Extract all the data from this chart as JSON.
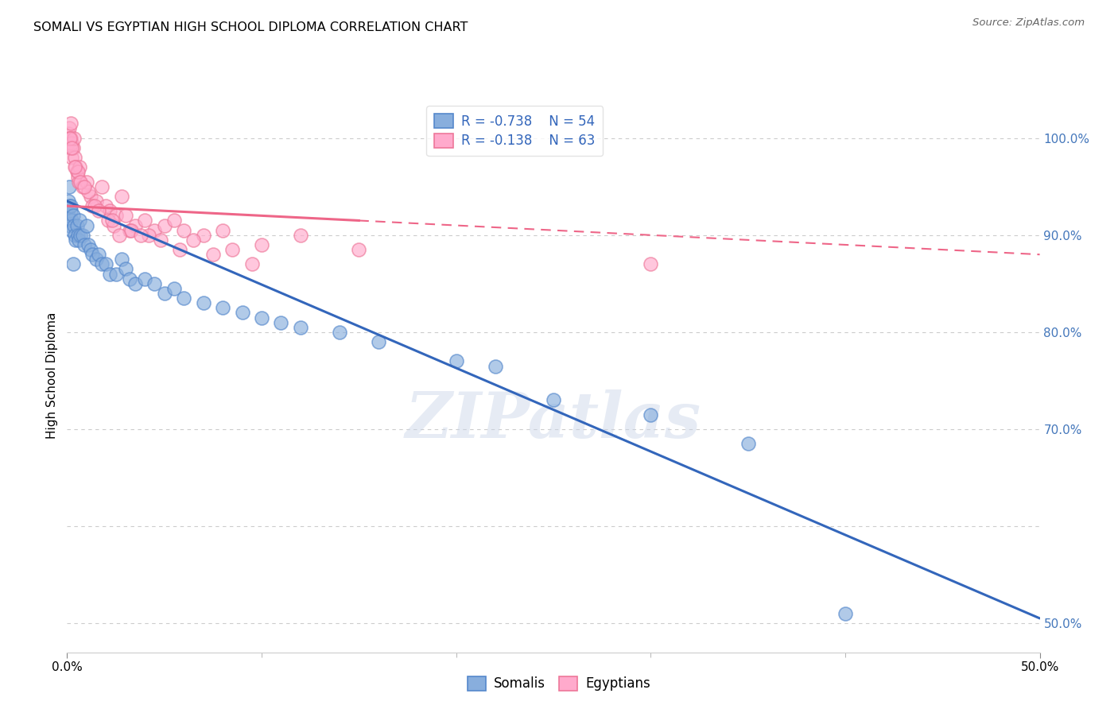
{
  "title": "SOMALI VS EGYPTIAN HIGH SCHOOL DIPLOMA CORRELATION CHART",
  "source": "Source: ZipAtlas.com",
  "ylabel": "High School Diploma",
  "right_ytick_values": [
    50.0,
    70.0,
    80.0,
    90.0,
    100.0
  ],
  "right_ytick_labels": [
    "50.0%",
    "70.0%",
    "80.0%",
    "90.0%",
    "100.0%"
  ],
  "xlim": [
    0.0,
    50.0
  ],
  "ylim": [
    47.0,
    104.0
  ],
  "somali_R": -0.738,
  "somali_N": 54,
  "egyptian_R": -0.138,
  "egyptian_N": 63,
  "somali_color": "#88AEDD",
  "somali_edge_color": "#5588CC",
  "egyptian_color": "#FFAACC",
  "egyptian_edge_color": "#EE7799",
  "somali_line_color": "#3366BB",
  "egyptian_line_color": "#EE6688",
  "watermark": "ZIPatlas",
  "somali_scatter_x": [
    0.05,
    0.08,
    0.1,
    0.12,
    0.15,
    0.18,
    0.2,
    0.22,
    0.25,
    0.3,
    0.35,
    0.4,
    0.45,
    0.5,
    0.55,
    0.6,
    0.65,
    0.7,
    0.8,
    0.9,
    1.0,
    1.1,
    1.2,
    1.3,
    1.5,
    1.6,
    1.8,
    2.0,
    2.2,
    2.5,
    2.8,
    3.0,
    3.2,
    3.5,
    4.0,
    4.5,
    5.0,
    5.5,
    6.0,
    7.0,
    8.0,
    9.0,
    10.0,
    11.0,
    12.0,
    14.0,
    16.0,
    20.0,
    22.0,
    25.0,
    30.0,
    35.0,
    40.0,
    0.3
  ],
  "somali_scatter_y": [
    93.5,
    92.0,
    95.0,
    93.0,
    91.0,
    92.5,
    93.0,
    91.5,
    90.5,
    92.0,
    91.0,
    90.0,
    89.5,
    91.0,
    90.0,
    89.5,
    91.5,
    90.0,
    90.0,
    89.0,
    91.0,
    89.0,
    88.5,
    88.0,
    87.5,
    88.0,
    87.0,
    87.0,
    86.0,
    86.0,
    87.5,
    86.5,
    85.5,
    85.0,
    85.5,
    85.0,
    84.0,
    84.5,
    83.5,
    83.0,
    82.5,
    82.0,
    81.5,
    81.0,
    80.5,
    80.0,
    79.0,
    77.0,
    76.5,
    73.0,
    71.5,
    68.5,
    51.0,
    87.0
  ],
  "egyptian_scatter_x": [
    0.05,
    0.08,
    0.1,
    0.12,
    0.15,
    0.18,
    0.2,
    0.22,
    0.25,
    0.3,
    0.35,
    0.4,
    0.45,
    0.5,
    0.55,
    0.6,
    0.65,
    0.8,
    1.0,
    1.2,
    1.5,
    1.8,
    2.0,
    2.2,
    2.5,
    2.8,
    3.0,
    3.5,
    4.0,
    4.5,
    5.0,
    6.0,
    7.0,
    8.0,
    10.0,
    12.0,
    15.0,
    0.15,
    0.25,
    0.55,
    1.1,
    1.3,
    2.1,
    2.4,
    3.2,
    4.2,
    5.5,
    6.5,
    8.5,
    30.0,
    0.4,
    0.7,
    0.9,
    1.4,
    1.6,
    2.3,
    2.7,
    3.3,
    3.8,
    4.8,
    5.8,
    7.5,
    9.5
  ],
  "egyptian_scatter_y": [
    99.5,
    100.5,
    101.0,
    100.0,
    99.0,
    101.5,
    100.0,
    99.5,
    98.0,
    99.0,
    100.0,
    98.0,
    97.0,
    96.5,
    96.0,
    95.5,
    97.0,
    95.0,
    95.5,
    94.0,
    93.5,
    95.0,
    93.0,
    92.5,
    92.0,
    94.0,
    92.0,
    91.0,
    91.5,
    90.5,
    91.0,
    90.5,
    90.0,
    90.5,
    89.0,
    90.0,
    88.5,
    100.0,
    99.0,
    96.5,
    94.5,
    93.0,
    91.5,
    91.0,
    90.5,
    90.0,
    91.5,
    89.5,
    88.5,
    87.0,
    97.0,
    95.5,
    95.0,
    93.0,
    92.5,
    91.5,
    90.0,
    90.5,
    90.0,
    89.5,
    88.5,
    88.0,
    87.0
  ],
  "somali_line_x0": 0.0,
  "somali_line_y0": 93.5,
  "somali_line_x1": 50.0,
  "somali_line_y1": 50.5,
  "egyptian_line_solid_x0": 0.0,
  "egyptian_line_solid_y0": 93.0,
  "egyptian_line_solid_x1": 15.0,
  "egyptian_line_solid_y1": 91.5,
  "egyptian_line_dashed_x0": 15.0,
  "egyptian_line_dashed_y0": 91.5,
  "egyptian_line_dashed_x1": 50.0,
  "egyptian_line_dashed_y1": 88.0,
  "grid_yticks": [
    50.0,
    60.0,
    70.0,
    80.0,
    90.0,
    100.0
  ]
}
